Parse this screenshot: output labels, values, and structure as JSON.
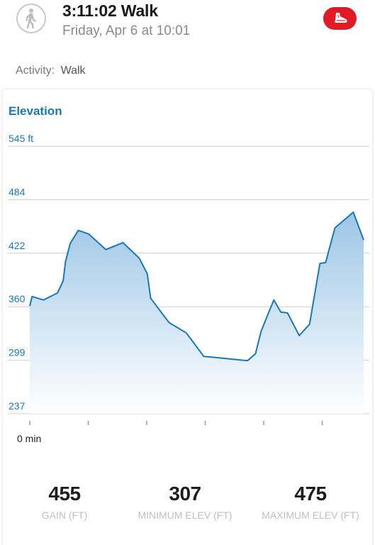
{
  "header": {
    "title": "3:11:02 Walk",
    "subtitle": "Friday, Apr 6 at 10:01",
    "activity_icon": "walking-person-icon",
    "brand_icon": "shoe-icon",
    "brand_color": "#e01b25"
  },
  "activity": {
    "label": "Activity:",
    "value": "Walk"
  },
  "chart_card": {
    "title": "Elevation",
    "accent_color": "#1b78b6"
  },
  "chart_data": {
    "type": "area",
    "title": "Elevation",
    "xlabel": "",
    "ylabel": "",
    "x_start_label": "0 min",
    "x_tick_count": 6,
    "y_tick_labels": [
      "545 ft",
      "484",
      "422",
      "360",
      "299",
      "237"
    ],
    "ylim": [
      237,
      545
    ],
    "xlim": [
      0,
      100
    ],
    "grid": true,
    "series": [
      {
        "x": [
          0,
          0.7,
          4.1,
          8.3,
          10,
          10.7,
          12.1,
          14.5,
          17.6,
          22.8,
          27.9,
          32.8,
          35.2,
          36.2,
          41.7,
          46.9,
          52.1,
          54.8,
          65.2,
          67.6,
          69.3,
          71.7,
          73.1,
          75.2,
          77.2,
          80.7,
          83.8,
          86.9,
          88.6,
          91.4,
          96.9,
          100
        ],
        "y": [
          361,
          372,
          368,
          376,
          390,
          412,
          433,
          448,
          444,
          426,
          434,
          416,
          398,
          370,
          342,
          330,
          303,
          302,
          298,
          306,
          332,
          355,
          368,
          354,
          353,
          327,
          340,
          410,
          411,
          451,
          469,
          437
        ]
      }
    ]
  },
  "stats": [
    {
      "value": "455",
      "label": "GAIN (FT)"
    },
    {
      "value": "307",
      "label": "MINIMUM ELEV (FT)"
    },
    {
      "value": "475",
      "label": "MAXIMUM ELEV (FT)"
    }
  ]
}
